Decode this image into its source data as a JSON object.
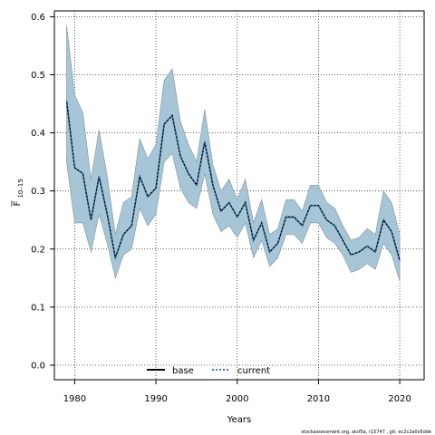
{
  "chart_data": {
    "type": "line",
    "xlabel": "Years",
    "ylabel_main": "F",
    "ylabel_sub": "10–15",
    "xlim": [
      1977.5,
      2023
    ],
    "ylim": [
      -0.025,
      0.61
    ],
    "xticks": [
      1980,
      1990,
      2000,
      2010,
      2020
    ],
    "yticks": [
      0.0,
      0.1,
      0.2,
      0.3,
      0.4,
      0.5,
      0.6
    ],
    "ytick_labels": [
      "0.0",
      "0.1",
      "0.2",
      "0.3",
      "0.4",
      "0.5",
      "0.6"
    ],
    "grid": true,
    "legend_position": "bottom-center",
    "colors": {
      "band": "#a6c6d8",
      "band_edge": "#8a9aa5",
      "base": "#000000",
      "current": "#2b7cb0"
    },
    "x": [
      1979,
      1980,
      1981,
      1982,
      1983,
      1984,
      1985,
      1986,
      1987,
      1988,
      1989,
      1990,
      1991,
      1992,
      1993,
      1994,
      1995,
      1996,
      1997,
      1998,
      1999,
      2000,
      2001,
      2002,
      2003,
      2004,
      2005,
      2006,
      2007,
      2008,
      2009,
      2010,
      2011,
      2012,
      2013,
      2014,
      2015,
      2016,
      2017,
      2018,
      2019,
      2020
    ],
    "series": [
      {
        "name": "base",
        "style": "solid",
        "values": [
          0.455,
          0.34,
          0.33,
          0.25,
          0.325,
          0.26,
          0.185,
          0.225,
          0.24,
          0.325,
          0.29,
          0.305,
          0.415,
          0.43,
          0.36,
          0.33,
          0.31,
          0.385,
          0.31,
          0.265,
          0.28,
          0.255,
          0.28,
          0.215,
          0.245,
          0.195,
          0.21,
          0.255,
          0.255,
          0.24,
          0.275,
          0.275,
          0.25,
          0.24,
          0.215,
          0.19,
          0.195,
          0.205,
          0.195,
          0.25,
          0.23,
          0.18
        ]
      },
      {
        "name": "current",
        "style": "dotted",
        "values": [
          0.455,
          0.34,
          0.33,
          0.25,
          0.325,
          0.26,
          0.185,
          0.225,
          0.24,
          0.325,
          0.29,
          0.305,
          0.415,
          0.43,
          0.36,
          0.33,
          0.31,
          0.385,
          0.31,
          0.265,
          0.28,
          0.255,
          0.28,
          0.215,
          0.245,
          0.195,
          0.21,
          0.255,
          0.255,
          0.24,
          0.275,
          0.275,
          0.25,
          0.24,
          0.215,
          0.19,
          0.195,
          0.205,
          0.195,
          0.25,
          0.23,
          0.18
        ]
      }
    ],
    "band": {
      "upper": [
        0.585,
        0.465,
        0.435,
        0.32,
        0.405,
        0.325,
        0.225,
        0.28,
        0.29,
        0.39,
        0.355,
        0.38,
        0.49,
        0.51,
        0.42,
        0.38,
        0.35,
        0.44,
        0.345,
        0.3,
        0.32,
        0.285,
        0.32,
        0.245,
        0.285,
        0.225,
        0.235,
        0.285,
        0.285,
        0.265,
        0.31,
        0.31,
        0.28,
        0.27,
        0.24,
        0.215,
        0.22,
        0.235,
        0.225,
        0.3,
        0.28,
        0.225
      ],
      "lower": [
        0.35,
        0.245,
        0.245,
        0.195,
        0.26,
        0.21,
        0.15,
        0.19,
        0.2,
        0.27,
        0.24,
        0.26,
        0.35,
        0.365,
        0.305,
        0.28,
        0.27,
        0.33,
        0.26,
        0.23,
        0.24,
        0.22,
        0.245,
        0.185,
        0.215,
        0.17,
        0.185,
        0.225,
        0.225,
        0.21,
        0.245,
        0.245,
        0.22,
        0.21,
        0.19,
        0.16,
        0.165,
        0.175,
        0.165,
        0.21,
        0.19,
        0.145
      ]
    }
  },
  "footer": {
    "credit": "stockassessment.org, atsf5a, r15747 , git: ec2c2a0c6dde"
  }
}
